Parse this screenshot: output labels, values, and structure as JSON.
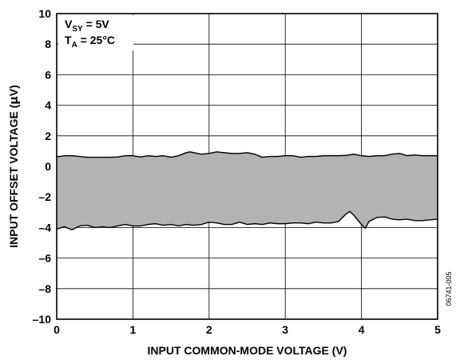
{
  "chart_data": {
    "type": "area",
    "title": "",
    "xlabel": "INPUT COMMON-MODE VOLTAGE (V)",
    "ylabel_prefix": "INPUT OFFSET VOLTAGE (",
    "ylabel_mu": "µ",
    "ylabel_suffix": "V)",
    "xlim": [
      0,
      5
    ],
    "ylim": [
      -10,
      10
    ],
    "x_ticks": [
      0,
      1,
      2,
      3,
      4,
      5
    ],
    "x_tick_labels": [
      "0",
      "1",
      "2",
      "3",
      "4",
      "5"
    ],
    "y_ticks": [
      -10,
      -8,
      -6,
      -4,
      -2,
      0,
      2,
      4,
      6,
      8,
      10
    ],
    "y_tick_labels": [
      "–10",
      "–8",
      "–6",
      "–4",
      "–2",
      "0",
      "2",
      "4",
      "6",
      "8",
      "10"
    ],
    "grid": true,
    "fill_color": "#b3b3b3",
    "upper_band": {
      "x": [
        0.0,
        0.05,
        0.1,
        0.2,
        0.3,
        0.4,
        0.5,
        0.6,
        0.7,
        0.8,
        0.9,
        1.0,
        1.1,
        1.2,
        1.3,
        1.4,
        1.5,
        1.6,
        1.7,
        1.75,
        1.8,
        1.85,
        1.9,
        2.0,
        2.1,
        2.2,
        2.3,
        2.4,
        2.5,
        2.6,
        2.7,
        2.8,
        2.9,
        3.0,
        3.1,
        3.2,
        3.3,
        3.4,
        3.5,
        3.6,
        3.7,
        3.8,
        3.9,
        4.0,
        4.1,
        4.2,
        4.3,
        4.4,
        4.5,
        4.6,
        4.7,
        4.8,
        4.9,
        5.0
      ],
      "y": [
        0.65,
        0.65,
        0.7,
        0.7,
        0.65,
        0.6,
        0.6,
        0.6,
        0.6,
        0.62,
        0.7,
        0.7,
        0.62,
        0.7,
        0.65,
        0.7,
        0.6,
        0.7,
        0.9,
        0.95,
        0.9,
        0.85,
        0.8,
        0.85,
        0.95,
        0.9,
        0.85,
        0.85,
        0.9,
        0.8,
        0.6,
        0.65,
        0.65,
        0.7,
        0.7,
        0.6,
        0.65,
        0.65,
        0.7,
        0.7,
        0.7,
        0.72,
        0.8,
        0.7,
        0.65,
        0.7,
        0.7,
        0.8,
        0.85,
        0.7,
        0.75,
        0.7,
        0.7,
        0.7
      ]
    },
    "lower_band": {
      "x": [
        0.0,
        0.1,
        0.2,
        0.3,
        0.4,
        0.5,
        0.6,
        0.7,
        0.8,
        0.9,
        1.0,
        1.1,
        1.2,
        1.3,
        1.4,
        1.5,
        1.6,
        1.7,
        1.8,
        1.9,
        2.0,
        2.1,
        2.2,
        2.3,
        2.4,
        2.5,
        2.6,
        2.7,
        2.8,
        2.9,
        3.0,
        3.1,
        3.2,
        3.3,
        3.4,
        3.5,
        3.6,
        3.7,
        3.8,
        3.85,
        3.9,
        4.0,
        4.05,
        4.1,
        4.2,
        4.3,
        4.4,
        4.5,
        4.6,
        4.7,
        4.8,
        4.9,
        5.0
      ],
      "y": [
        -4.1,
        -3.95,
        -4.15,
        -3.9,
        -3.85,
        -4.0,
        -3.95,
        -4.0,
        -3.9,
        -3.8,
        -3.9,
        -3.9,
        -3.8,
        -3.75,
        -3.85,
        -3.8,
        -3.9,
        -3.8,
        -3.85,
        -3.8,
        -3.65,
        -3.7,
        -3.8,
        -3.8,
        -3.65,
        -3.8,
        -3.75,
        -3.8,
        -3.7,
        -3.75,
        -3.75,
        -3.7,
        -3.7,
        -3.75,
        -3.65,
        -3.7,
        -3.7,
        -3.6,
        -3.1,
        -2.95,
        -3.2,
        -3.8,
        -4.05,
        -3.6,
        -3.35,
        -3.3,
        -3.45,
        -3.5,
        -3.45,
        -3.55,
        -3.55,
        -3.5,
        -3.45
      ]
    },
    "annotations": {
      "line1_main": "V",
      "line1_sub": "SY",
      "line1_rest": " = 5V",
      "line2_main": "T",
      "line2_sub": "A",
      "line2_rest": " = 25°C"
    },
    "figure_id": "06741-005"
  }
}
